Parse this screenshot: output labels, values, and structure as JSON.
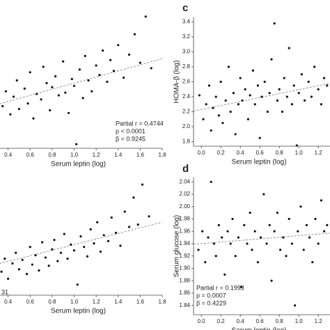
{
  "chart_data": [
    {
      "type": "scatter",
      "x_label": "Serum leptin (log)",
      "annotations": [
        "Partial r = 0.4744",
        "p < 0.0001",
        "β = 0.9245"
      ],
      "xlim": [
        0.2,
        1.8
      ],
      "ylim": [
        0,
        10
      ],
      "xticks": [
        0.4,
        0.6,
        0.8,
        {
          "value": 1,
          "label": "1.0"
        },
        1.2,
        1.4,
        1.6,
        1.8
      ],
      "color": "#111111",
      "trend_color": "#888888",
      "x": [
        0.35,
        0.38,
        0.42,
        0.45,
        0.48,
        0.5,
        0.55,
        0.58,
        0.6,
        0.63,
        0.66,
        0.7,
        0.72,
        0.75,
        0.78,
        0.8,
        0.83,
        0.86,
        0.9,
        0.92,
        0.95,
        0.98,
        1.0,
        1.02,
        1.05,
        1.08,
        1.1,
        1.13,
        1.16,
        1.2,
        1.23,
        1.26,
        1.3,
        1.33,
        1.36,
        1.4,
        1.45,
        1.5,
        1.55,
        1.6,
        1.65,
        1.7
      ],
      "y": [
        3.1,
        4.2,
        2.5,
        3.8,
        5.0,
        2.9,
        4.4,
        3.3,
        5.6,
        2.2,
        4.0,
        3.6,
        6.0,
        4.8,
        2.8,
        4.5,
        5.3,
        3.9,
        6.4,
        4.1,
        2.6,
        5.1,
        4.6,
        0.3,
        5.8,
        3.7,
        6.8,
        5.0,
        4.2,
        6.1,
        5.4,
        7.2,
        4.9,
        6.5,
        5.7,
        7.6,
        5.2,
        6.9,
        8.4,
        6.3,
        9.7,
        5.9
      ],
      "trend_x": [
        0.2,
        1.8
      ],
      "trend_y": [
        3.0,
        6.6
      ]
    },
    {
      "type": "scatter",
      "panel_label": "c",
      "x_label": "Serum leptin (log)",
      "y_label": "HOMA-β (log)",
      "xlim": [
        -0.08,
        1.32
      ],
      "ylim": [
        1.74,
        3.46
      ],
      "xticks": [
        {
          "value": 0,
          "label": "0.0"
        },
        0.2,
        0.4,
        0.6,
        0.8,
        {
          "value": 1,
          "label": "1.0"
        },
        1.2
      ],
      "yticks": [
        1.8,
        {
          "value": 2,
          "label": "2.0"
        },
        2.2,
        2.4,
        2.6,
        2.8,
        {
          "value": 3,
          "label": "3.0"
        },
        3.2,
        3.4
      ],
      "color": "#111111",
      "trend_color": "#888888",
      "x": [
        -0.02,
        0.02,
        0.05,
        0.08,
        0.1,
        0.12,
        0.15,
        0.18,
        0.2,
        0.22,
        0.25,
        0.28,
        0.3,
        0.33,
        0.35,
        0.38,
        0.4,
        0.42,
        0.45,
        0.48,
        0.5,
        0.53,
        0.55,
        0.58,
        0.6,
        0.62,
        0.65,
        0.68,
        0.7,
        0.72,
        0.75,
        0.78,
        0.8,
        0.83,
        0.85,
        0.88,
        0.9,
        0.93,
        0.95,
        0.98,
        1.0,
        1.03,
        1.06,
        1.1,
        1.13,
        1.16,
        1.2,
        1.23,
        1.26,
        1.29
      ],
      "y": [
        2.42,
        2.1,
        2.3,
        2.55,
        1.95,
        2.25,
        2.4,
        2.15,
        2.6,
        2.05,
        2.35,
        2.8,
        2.2,
        2.45,
        1.9,
        2.3,
        2.65,
        2.35,
        2.5,
        2.1,
        2.42,
        2.75,
        2.3,
        2.55,
        1.85,
        2.4,
        2.6,
        2.2,
        2.45,
        2.9,
        3.38,
        2.35,
        2.5,
        2.2,
        2.65,
        2.4,
        3.05,
        2.3,
        2.55,
        1.75,
        2.45,
        2.7,
        2.35,
        2.6,
        2.4,
        2.8,
        2.5,
        2.3,
        2.65,
        2.55
      ],
      "trend_x": [
        -0.08,
        1.32
      ],
      "trend_y": [
        2.21,
        2.58
      ]
    },
    {
      "type": "scatter",
      "x_label": "Serum leptin (log)",
      "annotations": [
        "31"
      ],
      "xlim": [
        0.2,
        1.8
      ],
      "ylim": [
        0,
        10
      ],
      "xticks": [
        0.4,
        0.6,
        0.8,
        {
          "value": 1,
          "label": "1.0"
        },
        1.2,
        1.4,
        1.6,
        1.8
      ],
      "color": "#111111",
      "trend_color": "#888888",
      "x": [
        0.34,
        0.37,
        0.4,
        0.44,
        0.47,
        0.5,
        0.53,
        0.57,
        0.6,
        0.62,
        0.65,
        0.68,
        0.71,
        0.74,
        0.77,
        0.8,
        0.82,
        0.85,
        0.88,
        0.91,
        0.94,
        0.97,
        1.0,
        1.03,
        1.06,
        1.09,
        1.12,
        1.15,
        1.18,
        1.21,
        1.24,
        1.27,
        1.31,
        1.34,
        1.38,
        1.42,
        1.46,
        1.5,
        1.54,
        1.58,
        1.62,
        1.68
      ],
      "y": [
        2.0,
        3.1,
        1.4,
        2.7,
        3.6,
        2.2,
        3.0,
        1.8,
        4.1,
        2.6,
        3.4,
        2.1,
        4.5,
        3.2,
        2.5,
        3.9,
        4.7,
        2.9,
        3.6,
        5.2,
        3.1,
        4.3,
        3.8,
        0.9,
        5.0,
        4.1,
        3.3,
        5.6,
        4.4,
        6.2,
        3.7,
        5.1,
        4.6,
        6.6,
        5.3,
        4.2,
        7.1,
        5.8,
        8.3,
        6.0,
        9.4,
        6.7
      ],
      "trend_x": [
        0.2,
        1.8
      ],
      "trend_y": [
        2.4,
        6.2
      ]
    },
    {
      "type": "scatter",
      "panel_label": "d",
      "x_label": "Serum leptin (log)",
      "y_label": "Serum glucose (log)",
      "annotations": [
        "Partial r = 0.1993",
        "p = 0.0007",
        "β = 0.4229"
      ],
      "xlim": [
        -0.08,
        1.32
      ],
      "ylim": [
        1.825,
        2.047
      ],
      "xticks": [
        {
          "value": 0,
          "label": "0.0"
        },
        0.2,
        0.4,
        0.6,
        0.8,
        {
          "value": 1,
          "label": "1.0"
        },
        1.2
      ],
      "yticks": [
        1.84,
        1.86,
        1.88,
        {
          "value": 1.9,
          "label": "1.90"
        },
        1.92,
        1.94,
        1.96,
        1.98,
        {
          "value": 2,
          "label": "2.00"
        },
        2.02,
        2.04
      ],
      "color": "#111111",
      "trend_color": "#888888",
      "x": [
        -0.03,
        0.01,
        0.04,
        0.07,
        0.1,
        0.13,
        0.15,
        0.18,
        0.21,
        0.24,
        0.27,
        0.3,
        0.32,
        0.35,
        0.38,
        0.41,
        0.44,
        0.47,
        0.5,
        0.52,
        0.55,
        0.58,
        0.61,
        0.64,
        0.67,
        0.7,
        0.72,
        0.75,
        0.78,
        0.81,
        0.84,
        0.87,
        0.9,
        0.93,
        0.96,
        0.99,
        1.02,
        1.05,
        1.08,
        1.11,
        1.14,
        1.17,
        1.2,
        1.23,
        1.26,
        1.29
      ],
      "y": [
        1.93,
        1.96,
        1.91,
        1.95,
        2.04,
        1.94,
        1.92,
        1.97,
        1.95,
        1.89,
        1.96,
        1.94,
        1.98,
        1.92,
        1.95,
        1.87,
        1.97,
        1.94,
        1.99,
        1.93,
        1.96,
        1.91,
        1.95,
        2.02,
        1.94,
        1.97,
        1.88,
        1.96,
        1.99,
        1.93,
        1.95,
        1.92,
        1.98,
        1.94,
        1.84,
        1.96,
        2.0,
        1.93,
        1.97,
        1.95,
        1.91,
        1.98,
        1.94,
        2.01,
        1.96,
        1.97
      ],
      "trend_x": [
        -0.08,
        1.32
      ],
      "trend_y": [
        1.939,
        1.957
      ]
    }
  ]
}
